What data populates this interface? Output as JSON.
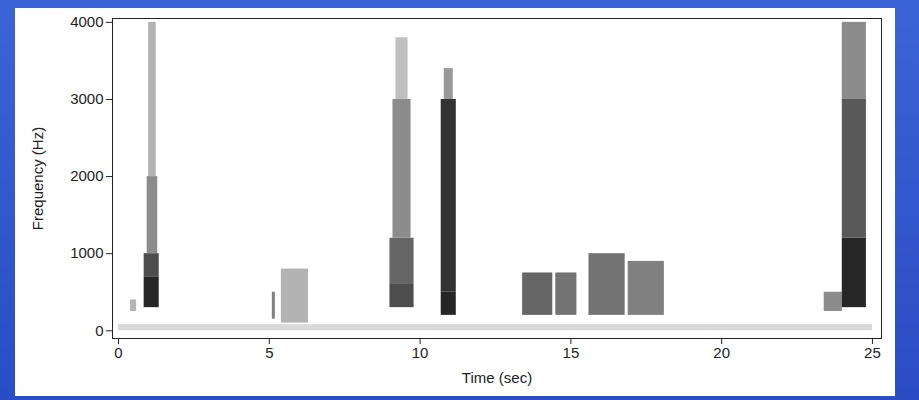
{
  "chart_data": {
    "type": "heatmap",
    "xlabel": "Time (sec)",
    "ylabel": "Frequency (Hz)",
    "xlim": [
      -0.2,
      25.3
    ],
    "ylim": [
      -100,
      4050
    ],
    "xticks": [
      0,
      5,
      10,
      15,
      20,
      25
    ],
    "yticks": [
      0,
      1000,
      2000,
      3000,
      4000
    ],
    "zlim": [
      0,
      1
    ],
    "grid": false,
    "cells": [
      {
        "t0": 0,
        "t1": 25,
        "f0": 0,
        "f1": 80,
        "level": 0.15
      },
      {
        "t0": 0.4,
        "t1": 0.6,
        "f0": 250,
        "f1": 400,
        "level": 0.3
      },
      {
        "t0": 0.85,
        "t1": 1.35,
        "f0": 300,
        "f1": 700,
        "level": 0.85
      },
      {
        "t0": 0.85,
        "t1": 1.35,
        "f0": 700,
        "f1": 1000,
        "level": 0.7
      },
      {
        "t0": 0.95,
        "t1": 1.3,
        "f0": 1000,
        "f1": 2000,
        "level": 0.45
      },
      {
        "t0": 1.0,
        "t1": 1.25,
        "f0": 2000,
        "f1": 4000,
        "level": 0.3
      },
      {
        "t0": 5.1,
        "t1": 5.2,
        "f0": 150,
        "f1": 500,
        "level": 0.5
      },
      {
        "t0": 5.4,
        "t1": 6.3,
        "f0": 100,
        "f1": 800,
        "level": 0.3
      },
      {
        "t0": 9.0,
        "t1": 9.8,
        "f0": 300,
        "f1": 600,
        "level": 0.7
      },
      {
        "t0": 9.0,
        "t1": 9.8,
        "f0": 600,
        "f1": 1200,
        "level": 0.6
      },
      {
        "t0": 9.1,
        "t1": 9.7,
        "f0": 1200,
        "f1": 3000,
        "level": 0.45
      },
      {
        "t0": 9.2,
        "t1": 9.6,
        "f0": 3000,
        "f1": 3800,
        "level": 0.25
      },
      {
        "t0": 10.7,
        "t1": 11.2,
        "f0": 200,
        "f1": 500,
        "level": 0.85
      },
      {
        "t0": 10.7,
        "t1": 11.2,
        "f0": 500,
        "f1": 3000,
        "level": 0.8
      },
      {
        "t0": 10.8,
        "t1": 11.1,
        "f0": 3000,
        "f1": 3400,
        "level": 0.4
      },
      {
        "t0": 13.4,
        "t1": 14.4,
        "f0": 200,
        "f1": 750,
        "level": 0.6
      },
      {
        "t0": 14.5,
        "t1": 15.2,
        "f0": 200,
        "f1": 750,
        "level": 0.55
      },
      {
        "t0": 15.6,
        "t1": 16.8,
        "f0": 200,
        "f1": 1000,
        "level": 0.55
      },
      {
        "t0": 16.9,
        "t1": 18.1,
        "f0": 200,
        "f1": 900,
        "level": 0.5
      },
      {
        "t0": 23.4,
        "t1": 24.0,
        "f0": 250,
        "f1": 500,
        "level": 0.45
      },
      {
        "t0": 24.0,
        "t1": 24.8,
        "f0": 300,
        "f1": 1200,
        "level": 0.85
      },
      {
        "t0": 24.0,
        "t1": 24.8,
        "f0": 1200,
        "f1": 3000,
        "level": 0.65
      },
      {
        "t0": 24.0,
        "t1": 24.8,
        "f0": 3000,
        "f1": 4000,
        "level": 0.45
      }
    ]
  }
}
